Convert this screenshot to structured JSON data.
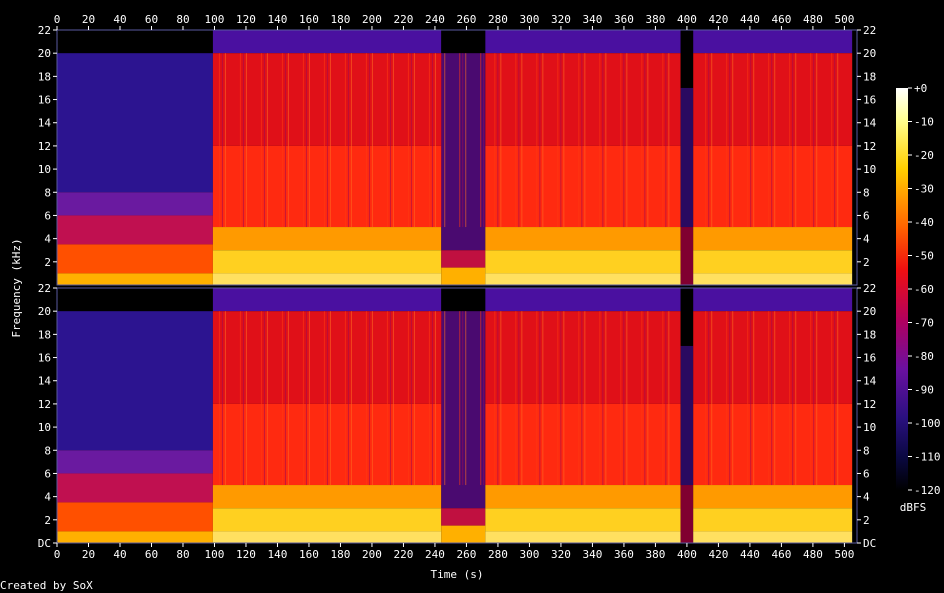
{
  "chart_data": {
    "type": "heatmap",
    "subtype": "spectrogram",
    "channels": 2,
    "xlabel": "Time (s)",
    "ylabel": "Frequency (kHz)",
    "xlim": [
      0,
      508
    ],
    "ylim": [
      0,
      22
    ],
    "x_ticks": [
      0,
      20,
      40,
      60,
      80,
      100,
      120,
      140,
      160,
      180,
      200,
      220,
      240,
      260,
      280,
      300,
      320,
      340,
      360,
      380,
      400,
      420,
      440,
      460,
      480,
      500
    ],
    "y_ticks_top": [
      "2",
      "4",
      "6",
      "8",
      "10",
      "12",
      "14",
      "16",
      "18",
      "20",
      "22"
    ],
    "y_ticks_bottom": [
      "DC",
      "2",
      "4",
      "6",
      "8",
      "10",
      "12",
      "14",
      "16",
      "18",
      "20",
      "22"
    ],
    "colorbar": {
      "label": "dBFS",
      "ticks": [
        "+0",
        "-10",
        "-20",
        "-30",
        "-40",
        "-50",
        "-60",
        "-70",
        "-80",
        "-90",
        "-100",
        "-110",
        "-120"
      ],
      "range": [
        -120,
        0
      ]
    },
    "segments": [
      {
        "start": 0,
        "end": 99,
        "kind": "quiet_intro",
        "cutoff_khz": 20
      },
      {
        "start": 99,
        "end": 244,
        "kind": "loud",
        "cutoff_khz": 20
      },
      {
        "start": 244,
        "end": 272,
        "kind": "breakdown",
        "cutoff_khz": 20
      },
      {
        "start": 272,
        "end": 396,
        "kind": "loud",
        "cutoff_khz": 20
      },
      {
        "start": 396,
        "end": 404,
        "kind": "gap",
        "cutoff_khz": 17
      },
      {
        "start": 404,
        "end": 505,
        "kind": "loud",
        "cutoff_khz": 20
      }
    ]
  },
  "footer": {
    "credit": "Created by SoX"
  }
}
